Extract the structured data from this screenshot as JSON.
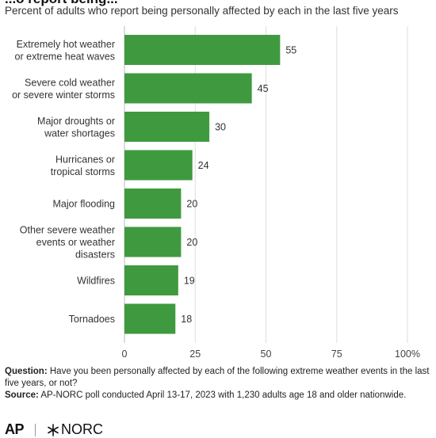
{
  "title": "...o report being...",
  "subtitle": "Percent of adults who report being personally affected by each in the last five years",
  "chart_data": {
    "type": "bar",
    "orientation": "horizontal",
    "categories": [
      [
        "Extremely hot weather",
        "or extreme heat waves"
      ],
      [
        "Severe cold weather",
        "or severe winter storms"
      ],
      [
        "Major droughts or",
        "water shortages"
      ],
      [
        "Hurricanes or",
        "tropical storms"
      ],
      [
        "Major flooding"
      ],
      [
        "Other severe weather",
        "events or weather",
        "disasters"
      ],
      [
        "Wildfires"
      ],
      [
        "Tornadoes"
      ]
    ],
    "values": [
      55,
      45,
      30,
      24,
      20,
      20,
      19,
      18
    ],
    "xlim": [
      0,
      100
    ],
    "xticks": [
      0,
      25,
      50,
      75,
      100
    ],
    "xtick_labels": [
      "0",
      "25",
      "50",
      "75",
      "100%"
    ],
    "bar_color": "#3f9a3f",
    "grid": "vertical"
  },
  "notes": {
    "question_label": "Question:",
    "question_text": " Have you been personally affected by each of the following extreme weather events in the last five years, or not?",
    "source_label": "Source:",
    "source_text": " AP-NORC poll conducted April 13-17, 2023 with 1,230 adults age 18 and older nationwide."
  },
  "logos": {
    "ap": "AP",
    "norc": "NORC"
  }
}
